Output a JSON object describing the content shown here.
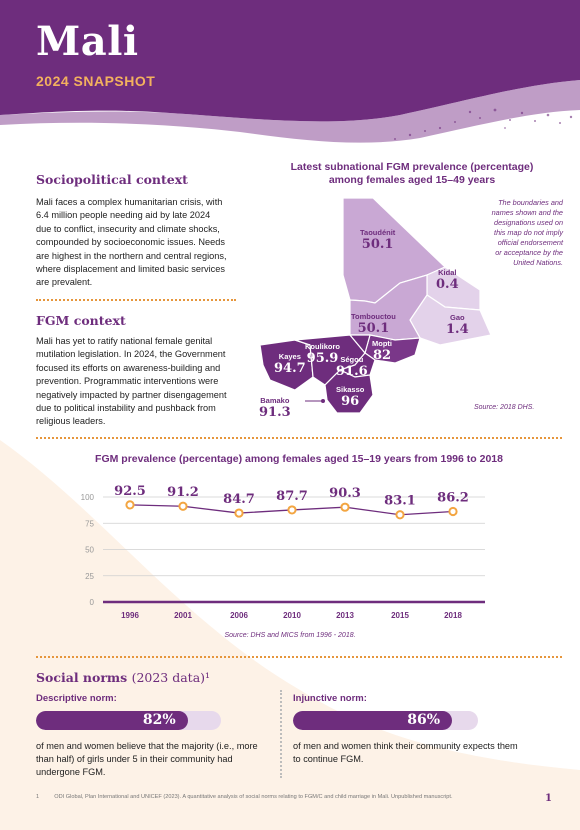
{
  "header": {
    "country": "Mali",
    "subtitle": "2024 SNAPSHOT"
  },
  "colors": {
    "purple": "#6e2d7d",
    "orange": "#f3a541",
    "light_purple": "#e7d9ec",
    "peach": "#fdf2e7"
  },
  "sociopolitical": {
    "heading": "Sociopolitical context",
    "lines": [
      "Mali faces a complex humanitarian crisis, with",
      "6.4 million people needing aid by late 2024",
      "due to conflict, insecurity and climate shocks,",
      "compounded by socioeconomic issues. Needs",
      "are highest in the northern and central regions,",
      "where displacement and limited basic services",
      "are prevalent."
    ]
  },
  "fgm_context": {
    "heading": "FGM context",
    "lines": [
      "Mali has yet to ratify national female genital",
      "mutilation legislation. In 2024, the Government",
      "focused its efforts on awareness-building and",
      "prevention. Programmatic interventions were",
      "negatively impacted by partner disengagement",
      "due to political instability and pushback from",
      "religious leaders."
    ]
  },
  "map": {
    "title_line1": "Latest subnational FGM prevalence (percentage)",
    "title_line2": "among females aged 15–49 years",
    "disclaimer": [
      "The boundaries and",
      "names shown and the",
      "designations used on",
      "this map do not imply",
      "official endorsement",
      "or acceptance by the",
      "United Nations."
    ],
    "source": "Source: 2018 DHS.",
    "regions": [
      {
        "name": "Taoudénit",
        "value": "50.1"
      },
      {
        "name": "Kidal",
        "value": "0.4"
      },
      {
        "name": "Gao",
        "value": "1.4"
      },
      {
        "name": "Tombouctou",
        "value": "50.1"
      },
      {
        "name": "Mopti",
        "value": "82"
      },
      {
        "name": "Koulikoro",
        "value": "95.9"
      },
      {
        "name": "Kayes",
        "value": "94.7"
      },
      {
        "name": "Ségou",
        "value": "91.6"
      },
      {
        "name": "Sikasso",
        "value": "96"
      },
      {
        "name": "Bamako",
        "value": "91.3"
      }
    ]
  },
  "chart_data": {
    "type": "line",
    "title": "FGM prevalence (percentage) among females aged 15–19 years from 1996 to 2018",
    "x": [
      "1996",
      "2001",
      "2006",
      "2010",
      "2013",
      "2015",
      "2018"
    ],
    "values": [
      92.5,
      91.2,
      84.7,
      87.7,
      90.3,
      83.1,
      86.2
    ],
    "value_labels": [
      "92.5",
      "91.2",
      "84.7",
      "87.7",
      "90.3",
      "83.1",
      "86.2"
    ],
    "ylim": [
      0,
      100
    ],
    "yticks": [
      "0",
      "25",
      "50",
      "75",
      "100"
    ],
    "ytick_values": [
      0,
      25,
      50,
      75,
      100
    ],
    "grid": true,
    "source": "Source: DHS and MICS from 1996 - 2018."
  },
  "social_norms": {
    "heading": "Social norms",
    "heading_suffix": "(2023 data)¹",
    "descriptive": {
      "label": "Descriptive norm:",
      "value_text": "82%",
      "value": 82,
      "lines": [
        "of men and women believe that the majority (i.e., more",
        "than half) of girls under 5 in their community had",
        "undergone FGM."
      ]
    },
    "injunctive": {
      "label": "Injunctive norm:",
      "value_text": "86%",
      "value": 86,
      "lines": [
        "of men and women think their community expects them",
        "to continue FGM."
      ]
    }
  },
  "footnote": {
    "number": "1",
    "text": "ODI Global, Plan International and UNICEF (2023). A quantitative analysis of social norms relating to FGM/C and child marriage in Mali. Unpublished manuscript."
  },
  "page_number": "1"
}
